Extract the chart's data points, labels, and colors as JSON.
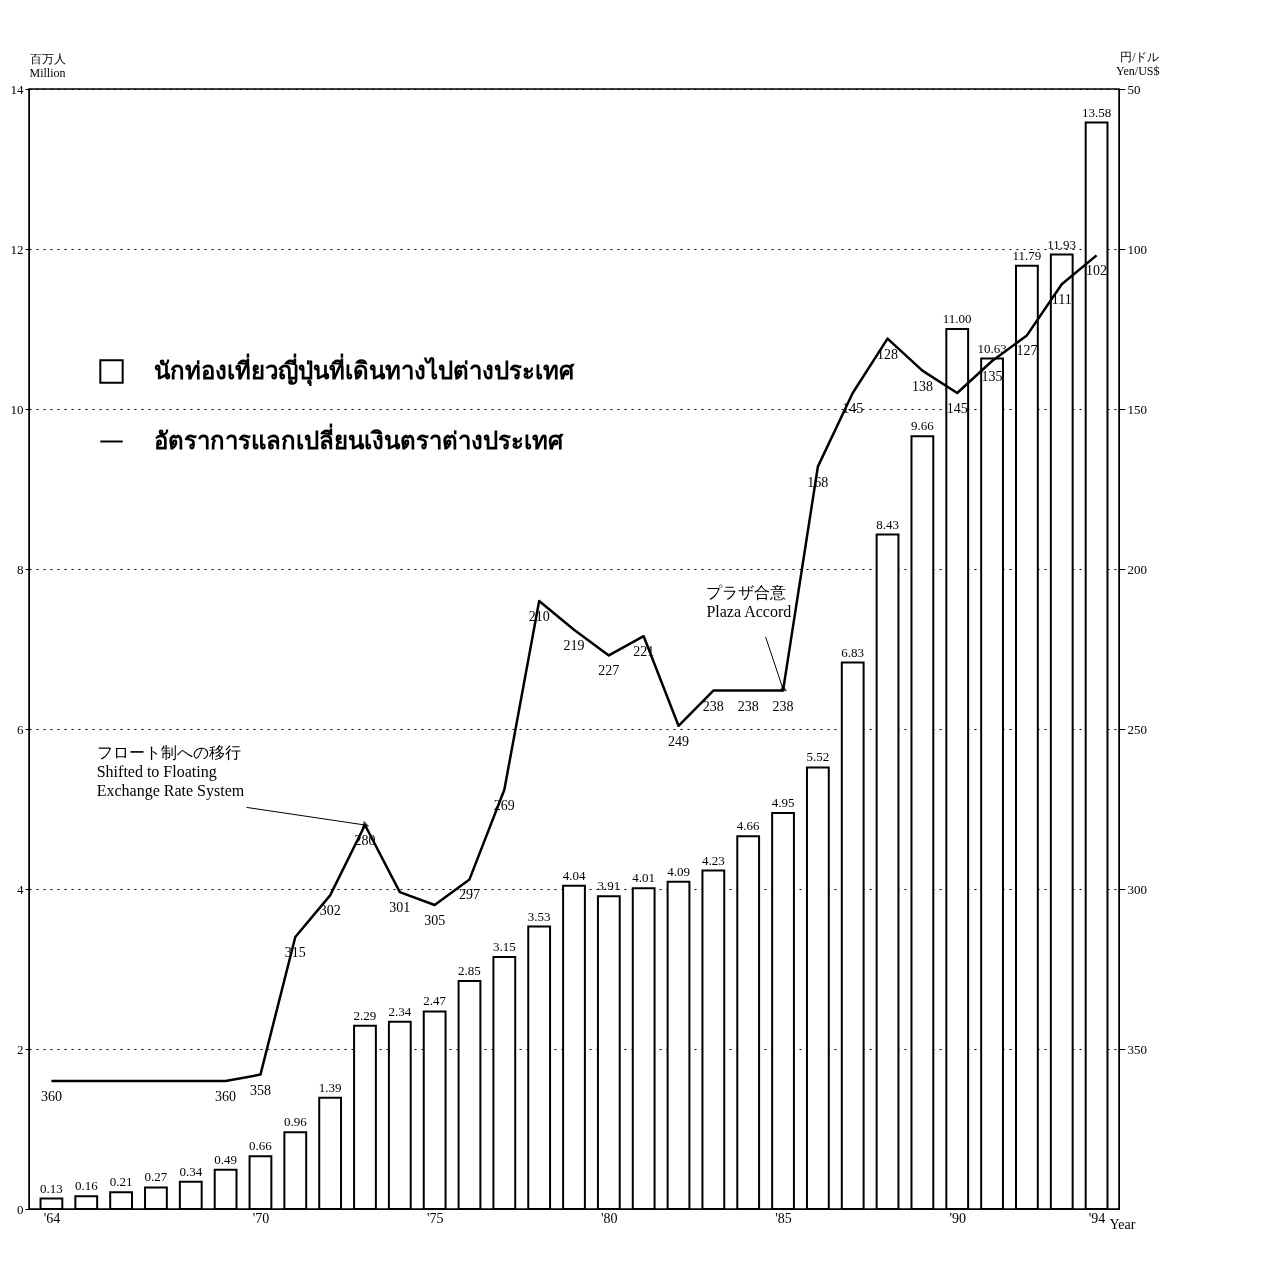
{
  "chart_data": {
    "type": "bar",
    "x": [
      1964,
      1965,
      1966,
      1967,
      1968,
      1969,
      1970,
      1971,
      1972,
      1973,
      1974,
      1975,
      1976,
      1977,
      1978,
      1979,
      1980,
      1981,
      1982,
      1983,
      1984,
      1985,
      1986,
      1987,
      1988,
      1989,
      1990,
      1991,
      1992,
      1993,
      1994
    ],
    "xlim": [
      1963.5,
      1994.5
    ],
    "xticks": [
      {
        "value": 1964,
        "label": "'64"
      },
      {
        "value": 1970,
        "label": "'70"
      },
      {
        "value": 1975,
        "label": "'75"
      },
      {
        "value": 1980,
        "label": "'80"
      },
      {
        "value": 1985,
        "label": "'85"
      },
      {
        "value": 1990,
        "label": "'90"
      },
      {
        "value": 1994,
        "label": "'94"
      }
    ],
    "xlabel": "Year",
    "ylabel": "百万人\nMillion",
    "y2label": "円/ドル\nYen/US$",
    "ylim": [
      0,
      14
    ],
    "yticks": [
      {
        "value": 0,
        "label": "0"
      },
      {
        "value": 2,
        "label": "2"
      },
      {
        "value": 4,
        "label": "4"
      },
      {
        "value": 6,
        "label": "6"
      },
      {
        "value": 8,
        "label": "8"
      },
      {
        "value": 10,
        "label": "10"
      },
      {
        "value": 12,
        "label": "12"
      },
      {
        "value": 14,
        "label": "14"
      }
    ],
    "y2lim": [
      400,
      50
    ],
    "y2ticks": [
      50,
      100,
      150,
      200,
      250,
      300,
      350
    ],
    "grid": "y",
    "legend": "top left",
    "series": [
      {
        "name": "นักท่องเที่ยวญี่ปุ่นที่เดินทางไปต่างประเทศ",
        "color": "#ffffff",
        "values": [
          0.13,
          0.16,
          0.21,
          0.27,
          0.34,
          0.49,
          0.66,
          0.96,
          1.39,
          2.29,
          2.34,
          2.47,
          2.85,
          3.15,
          3.53,
          4.04,
          3.91,
          4.01,
          4.09,
          4.23,
          4.66,
          4.95,
          5.52,
          6.83,
          8.43,
          9.66,
          11.0,
          10.63,
          11.79,
          11.93,
          13.58
        ],
        "value_labels": [
          "0.13",
          "0.16",
          "0.21",
          "0.27",
          "0.34",
          "0.49",
          "0.66",
          "0.96",
          "1.39",
          "2.29",
          "2.34",
          "2.47",
          "2.85",
          "3.15",
          "3.53",
          "4.04",
          "3.91",
          "4.01",
          "4.09",
          "4.23",
          "4.66",
          "4.95",
          "5.52",
          "6.83",
          "8.43",
          "9.66",
          "11.00",
          "10.63",
          "11.79",
          "11.93",
          "13.58"
        ]
      },
      {
        "name": "อัตราการแลกเปลี่ยนเงินตราต่างประเทศ",
        "type": "line",
        "axis": "y2",
        "color": "#000000",
        "values": [
          360,
          360,
          360,
          360,
          360,
          360,
          358,
          315,
          302,
          280,
          301,
          305,
          297,
          269,
          210,
          219,
          227,
          221,
          249,
          238,
          238,
          238,
          168,
          145,
          128,
          138,
          145,
          135,
          127,
          111,
          102
        ],
        "value_labels": [
          "360",
          null,
          null,
          null,
          null,
          "360",
          "358",
          "315",
          "302",
          "280",
          "301",
          "305",
          "297",
          "269",
          "210",
          "219",
          "227",
          "221",
          "249",
          "238",
          "238",
          "238",
          "168",
          "145",
          "128",
          "138",
          "145",
          "135",
          "127",
          "111",
          "102"
        ]
      }
    ],
    "annotations": [
      {
        "text": "フロート制への移行\nShifted to Floating\nExchange Rate System",
        "x": 1973,
        "y": 4.8
      },
      {
        "text": "プラザ合意\nPlaza Accord",
        "x": 1985,
        "y": 6.5
      }
    ]
  }
}
